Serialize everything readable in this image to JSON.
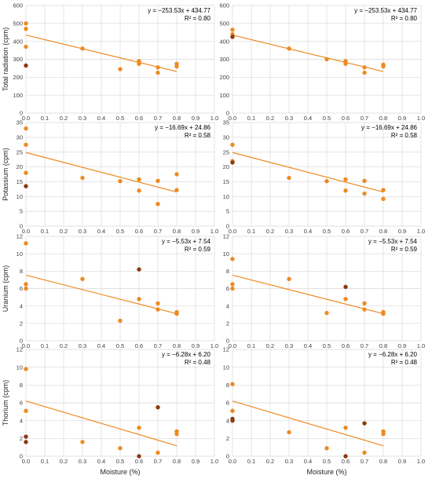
{
  "colors": {
    "point": "#ee8a22",
    "outlier": "#8b3a10",
    "trend": "#ee8a22",
    "grid": "#d9d9d9"
  },
  "chart_data": [
    {
      "type": "scatter",
      "ylabel": "Total radiation (cpm)",
      "xlabel": "",
      "xlim": [
        0,
        1
      ],
      "ylim": [
        0,
        600
      ],
      "xticks": [
        "0.0",
        "0.1",
        "0.2",
        "0.3",
        "0.4",
        "0.5",
        "0.6",
        "0.7",
        "0.8",
        "0.9",
        "1.0"
      ],
      "yticks": [
        "0",
        "100",
        "200",
        "300",
        "400",
        "500",
        "600"
      ],
      "equation": "y = −253.53x + 434.77",
      "r2": "R² = 0.80",
      "trendline": {
        "slope": -253.53,
        "intercept": 434.77,
        "x": [
          0,
          0.8
        ]
      },
      "points": [
        [
          0,
          500
        ],
        [
          0,
          470
        ],
        [
          0,
          370
        ],
        [
          0.3,
          360
        ],
        [
          0.5,
          245
        ],
        [
          0.6,
          290
        ],
        [
          0.6,
          275
        ],
        [
          0.7,
          255
        ],
        [
          0.7,
          225
        ],
        [
          0.8,
          275
        ],
        [
          0.8,
          260
        ]
      ],
      "outliers": [
        [
          0,
          265
        ]
      ]
    },
    {
      "type": "scatter",
      "ylabel": "",
      "xlabel": "",
      "xlim": [
        0,
        1
      ],
      "ylim": [
        0,
        600
      ],
      "xticks": [
        "0.0",
        "0.1",
        "0.2",
        "0.3",
        "0.4",
        "0.5",
        "0.6",
        "0.7",
        "0.8",
        "0.9",
        "1.0"
      ],
      "yticks": [
        "0",
        "100",
        "200",
        "300",
        "400",
        "500",
        "600"
      ],
      "equation": "y = −253.53x + 434.77",
      "r2": "R² = 0.80",
      "trendline": {
        "slope": -253.53,
        "intercept": 434.77,
        "x": [
          0,
          0.8
        ]
      },
      "points": [
        [
          0,
          465
        ],
        [
          0,
          440
        ],
        [
          0.3,
          360
        ],
        [
          0.5,
          300
        ],
        [
          0.6,
          290
        ],
        [
          0.6,
          275
        ],
        [
          0.7,
          255
        ],
        [
          0.7,
          225
        ],
        [
          0.8,
          270
        ],
        [
          0.8,
          260
        ]
      ],
      "outliers": [
        [
          0,
          425
        ]
      ]
    },
    {
      "type": "scatter",
      "ylabel": "Potassium (cpm)",
      "xlabel": "",
      "xlim": [
        0,
        1
      ],
      "ylim": [
        0,
        35
      ],
      "xticks": [
        "0.0",
        "0.1",
        "0.2",
        "0.3",
        "0.4",
        "0.5",
        "0.6",
        "0.7",
        "0.8",
        "0.9",
        "1.0"
      ],
      "yticks": [
        "0",
        "5",
        "10",
        "15",
        "20",
        "25",
        "30",
        "35"
      ],
      "equation": "y = −16.69x + 24.86",
      "r2": "R² = 0.58",
      "trendline": {
        "slope": -16.69,
        "intercept": 24.86,
        "x": [
          0,
          0.8
        ]
      },
      "points": [
        [
          0,
          33
        ],
        [
          0,
          27.5
        ],
        [
          0,
          18
        ],
        [
          0.3,
          16.3
        ],
        [
          0.5,
          15.2
        ],
        [
          0.6,
          15.8
        ],
        [
          0.6,
          12
        ],
        [
          0.7,
          15.3
        ],
        [
          0.7,
          7.5
        ],
        [
          0.8,
          17.5
        ],
        [
          0.8,
          12.2
        ]
      ],
      "outliers": [
        [
          0,
          13.5
        ]
      ]
    },
    {
      "type": "scatter",
      "ylabel": "",
      "xlabel": "",
      "xlim": [
        0,
        1
      ],
      "ylim": [
        0,
        35
      ],
      "xticks": [
        "0.0",
        "0.1",
        "0.2",
        "0.3",
        "0.4",
        "0.5",
        "0.6",
        "0.7",
        "0.8",
        "0.9",
        "1.0"
      ],
      "yticks": [
        "0",
        "5",
        "10",
        "15",
        "20",
        "25",
        "30",
        "35"
      ],
      "equation": "y = −16.69x + 24.86",
      "r2": "R² = 0.58",
      "trendline": {
        "slope": -16.69,
        "intercept": 24.86,
        "x": [
          0,
          0.8
        ]
      },
      "points": [
        [
          0,
          27.5
        ],
        [
          0,
          22
        ],
        [
          0.3,
          16.3
        ],
        [
          0.5,
          15.2
        ],
        [
          0.6,
          15.8
        ],
        [
          0.6,
          12
        ],
        [
          0.7,
          15.3
        ],
        [
          0.7,
          11
        ],
        [
          0.8,
          12.2
        ],
        [
          0.8,
          9.2
        ]
      ],
      "outliers": [
        [
          0,
          21.5
        ]
      ]
    },
    {
      "type": "scatter",
      "ylabel": "Uranium (cpm)",
      "xlabel": "",
      "xlim": [
        0,
        1
      ],
      "ylim": [
        0,
        12
      ],
      "xticks": [
        "0.0",
        "0.1",
        "0.2",
        "0.3",
        "0.4",
        "0.5",
        "0.6",
        "0.7",
        "0.8",
        "0.9",
        "1.0"
      ],
      "yticks": [
        "0",
        "2",
        "4",
        "6",
        "8",
        "10",
        "12"
      ],
      "equation": "y = −5.53x + 7.54",
      "r2": "R² = 0.59",
      "trendline": {
        "slope": -5.53,
        "intercept": 7.54,
        "x": [
          0,
          0.8
        ]
      },
      "points": [
        [
          0,
          11.2
        ],
        [
          0,
          6.5
        ],
        [
          0,
          6
        ],
        [
          0.3,
          7.1
        ],
        [
          0.5,
          2.3
        ],
        [
          0.6,
          4.8
        ],
        [
          0.7,
          4.3
        ],
        [
          0.7,
          3.6
        ],
        [
          0.8,
          3.3
        ],
        [
          0.8,
          3.1
        ]
      ],
      "outliers": [
        [
          0.6,
          8.2
        ]
      ]
    },
    {
      "type": "scatter",
      "ylabel": "",
      "xlabel": "",
      "xlim": [
        0,
        1
      ],
      "ylim": [
        0,
        12
      ],
      "xticks": [
        "0.0",
        "0.1",
        "0.2",
        "0.3",
        "0.4",
        "0.5",
        "0.6",
        "0.7",
        "0.8",
        "0.9",
        "1.0"
      ],
      "yticks": [
        "0",
        "2",
        "4",
        "6",
        "8",
        "10",
        "12"
      ],
      "equation": "y = −5.53x + 7.54",
      "r2": "R² = 0.59",
      "trendline": {
        "slope": -5.53,
        "intercept": 7.54,
        "x": [
          0,
          0.8
        ]
      },
      "points": [
        [
          0,
          9.4
        ],
        [
          0,
          6.5
        ],
        [
          0,
          6
        ],
        [
          0.3,
          7.1
        ],
        [
          0.5,
          3.2
        ],
        [
          0.6,
          4.8
        ],
        [
          0.7,
          4.3
        ],
        [
          0.7,
          3.6
        ],
        [
          0.8,
          3.3
        ],
        [
          0.8,
          3.1
        ]
      ],
      "outliers": [
        [
          0.6,
          6.2
        ]
      ]
    },
    {
      "type": "scatter",
      "ylabel": "Thorium (cpm)",
      "xlabel": "Moisture (%)",
      "xlim": [
        0,
        1
      ],
      "ylim": [
        0,
        12
      ],
      "xticks": [
        "0.0",
        "0.1",
        "0.2",
        "0.3",
        "0.4",
        "0.5",
        "0.6",
        "0.7",
        "0.8",
        "0.9",
        "1.0"
      ],
      "yticks": [
        "0",
        "2",
        "4",
        "6",
        "8",
        "10",
        "12"
      ],
      "equation": "y = −6.28x + 6.20",
      "r2": "R² = 0.48",
      "trendline": {
        "slope": -6.28,
        "intercept": 6.2,
        "x": [
          0,
          0.8
        ]
      },
      "points": [
        [
          0,
          9.8
        ],
        [
          0,
          5.1
        ],
        [
          0.3,
          1.6
        ],
        [
          0.5,
          0.9
        ],
        [
          0.6,
          3.2
        ],
        [
          0.7,
          0.4
        ],
        [
          0.8,
          2.8
        ],
        [
          0.8,
          2.5
        ]
      ],
      "outliers": [
        [
          0,
          2.2
        ],
        [
          0,
          1.6
        ],
        [
          0.6,
          0
        ],
        [
          0.7,
          5.5
        ]
      ]
    },
    {
      "type": "scatter",
      "ylabel": "",
      "xlabel": "Moisture (%)",
      "xlim": [
        0,
        1
      ],
      "ylim": [
        0,
        12
      ],
      "xticks": [
        "0.0",
        "0.1",
        "0.2",
        "0.3",
        "0.4",
        "0.5",
        "0.6",
        "0.7",
        "0.8",
        "0.9",
        "1.0"
      ],
      "yticks": [
        "0",
        "2",
        "4",
        "6",
        "8",
        "10",
        "12"
      ],
      "equation": "y = −6.28x + 6.20",
      "r2": "R² = 0.48",
      "trendline": {
        "slope": -6.28,
        "intercept": 6.2,
        "x": [
          0,
          0.8
        ]
      },
      "points": [
        [
          0,
          8.1
        ],
        [
          0,
          5.1
        ],
        [
          0.3,
          2.7
        ],
        [
          0.5,
          0.9
        ],
        [
          0.6,
          3.2
        ],
        [
          0.7,
          0.4
        ],
        [
          0.8,
          2.8
        ],
        [
          0.8,
          2.5
        ]
      ],
      "outliers": [
        [
          0,
          4.2
        ],
        [
          0,
          4
        ],
        [
          0.6,
          0
        ],
        [
          0.7,
          3.7
        ]
      ]
    }
  ]
}
